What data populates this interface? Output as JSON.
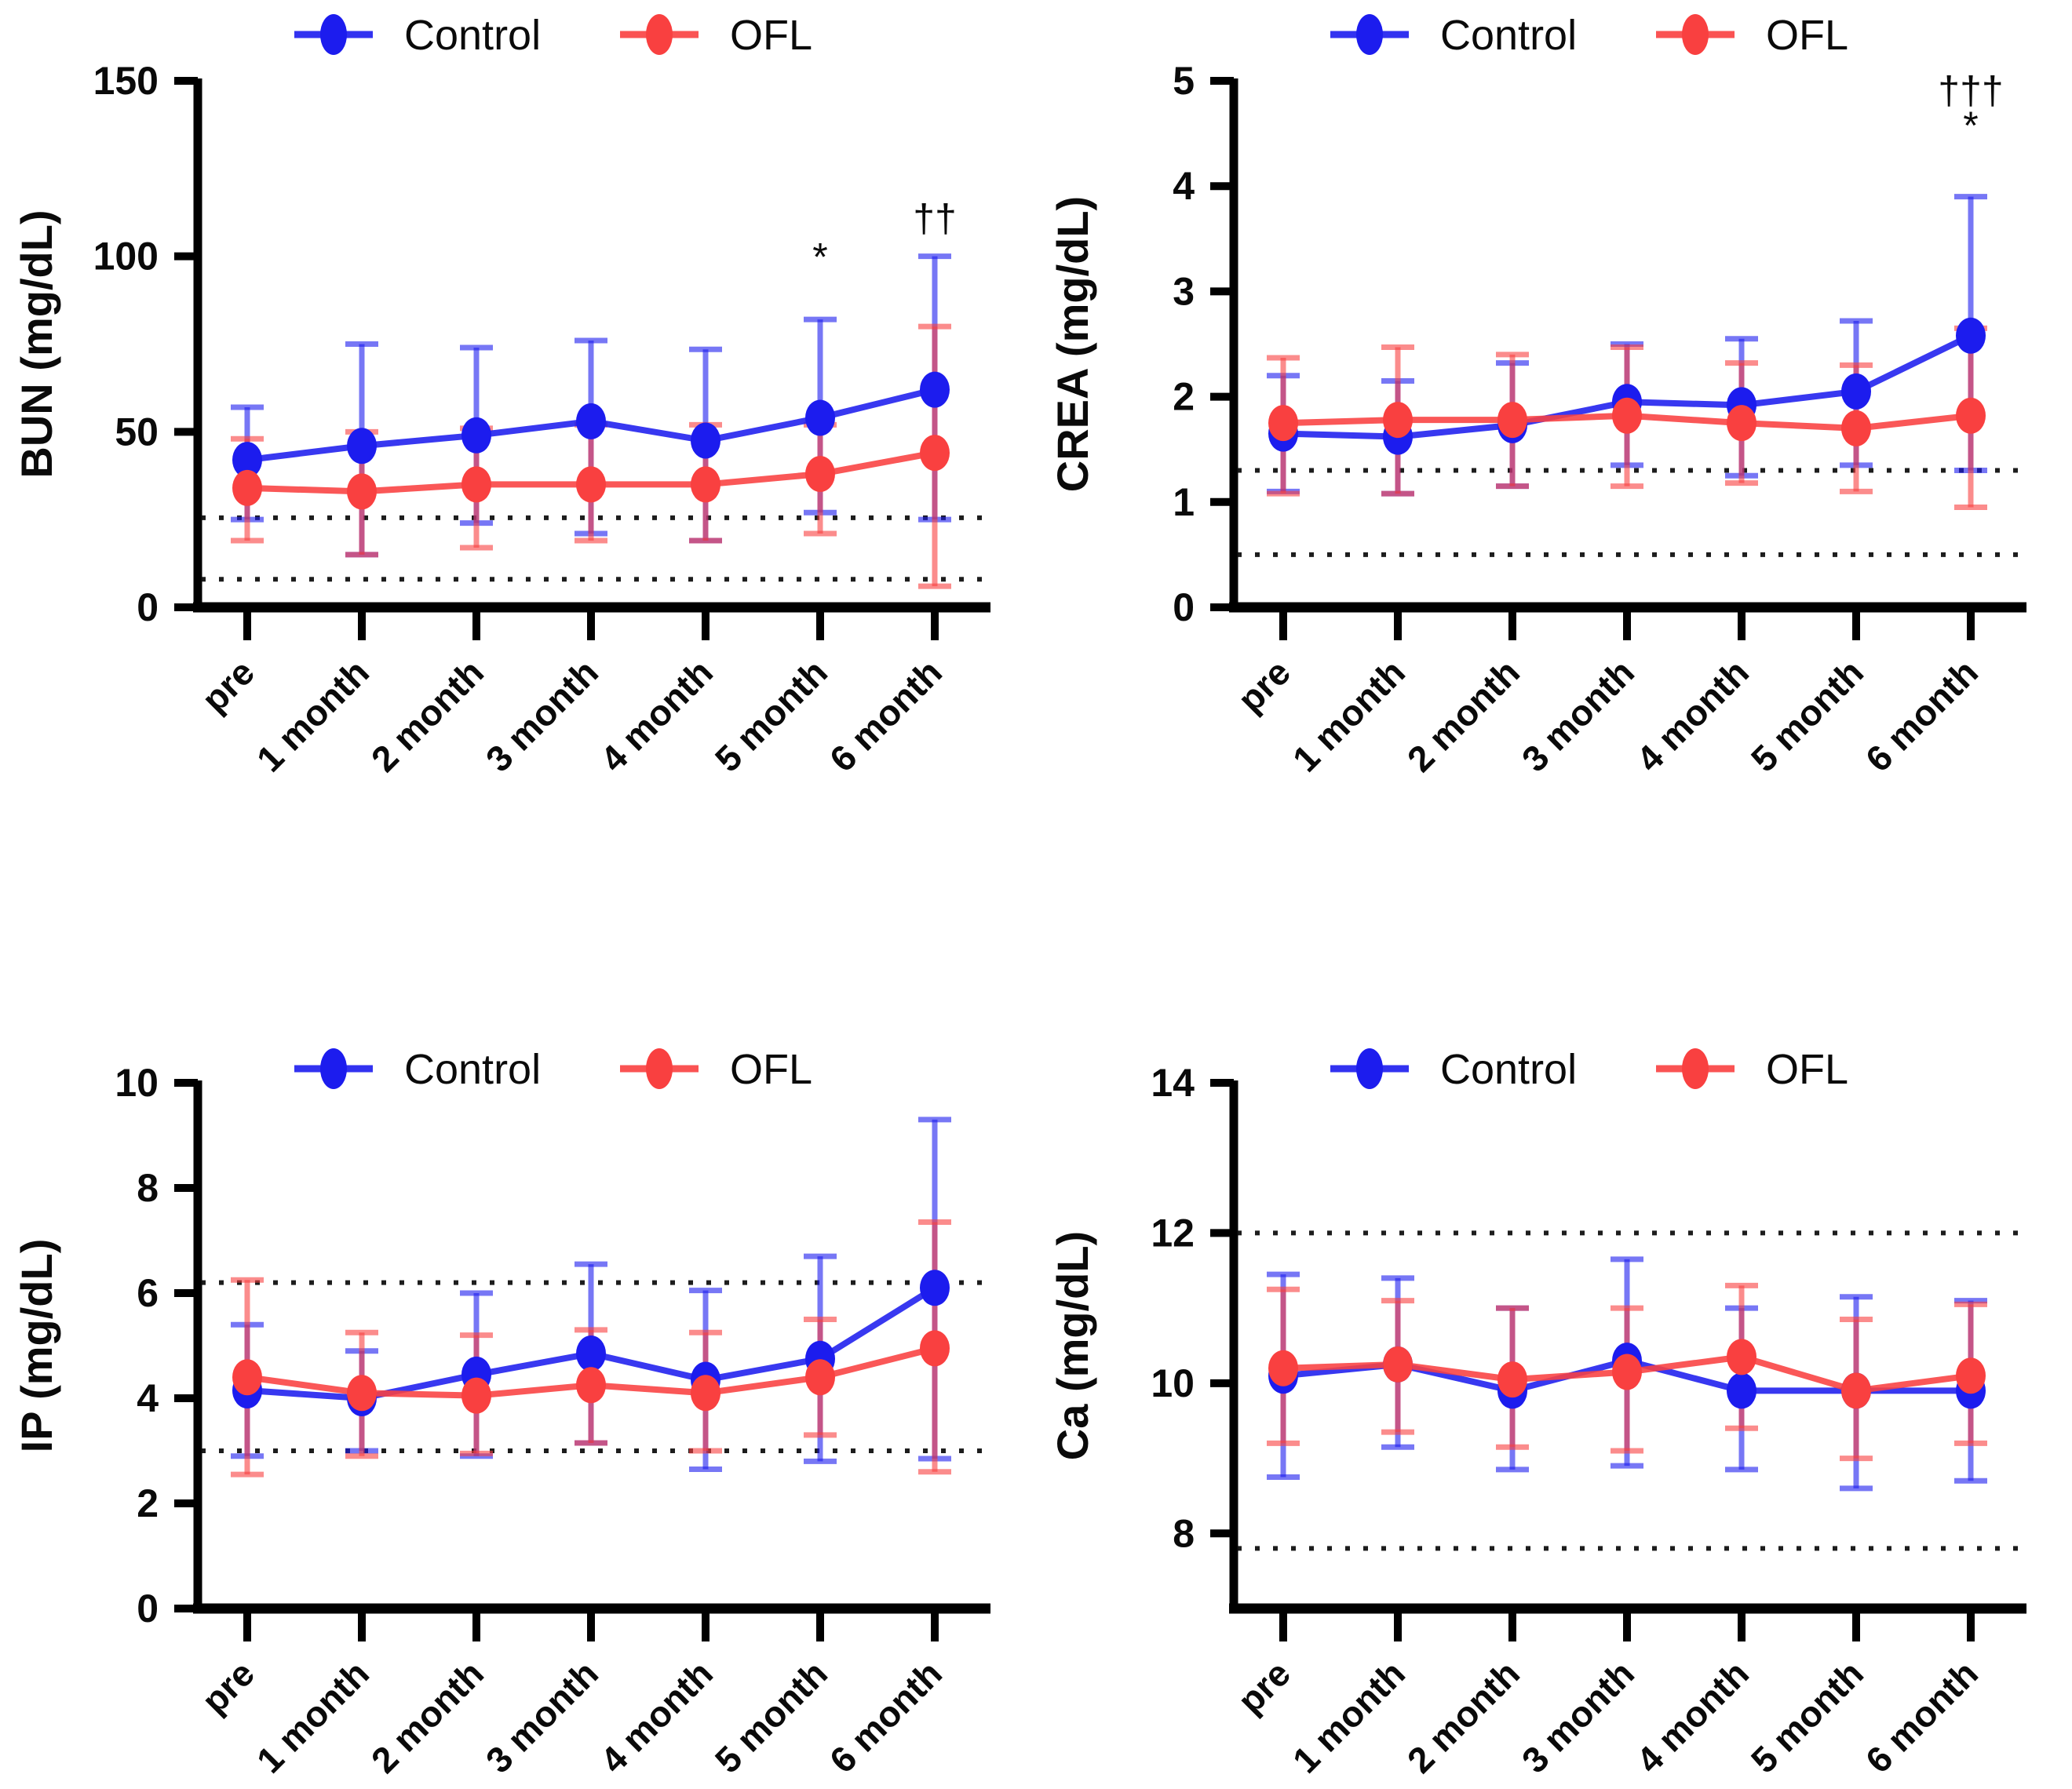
{
  "figure": {
    "background": "#ffffff",
    "text_color": "#0a0a0a",
    "axis_color": "#000000"
  },
  "colors": {
    "control_blue": "#1c1cee",
    "ofl_red": "#f94040"
  },
  "legend": {
    "items": [
      {
        "label": "Control",
        "color": "#1c1cee"
      },
      {
        "label": "OFL",
        "color": "#f94040"
      }
    ]
  },
  "categories": [
    "pre",
    "1 month",
    "2 month",
    "3 month",
    "4 month",
    "5 month",
    "6 month"
  ],
  "chart_data": [
    {
      "id": "bun",
      "type": "line",
      "title": "",
      "ylabel": "BUN  (mg/dL)",
      "xlabel": "",
      "ylim": [
        0,
        150
      ],
      "yticks": [
        0,
        50,
        100,
        150
      ],
      "grid": false,
      "legend_position": "top-center",
      "reference_lines": [
        25.5,
        8
      ],
      "categories": [
        "pre",
        "1 month",
        "2 month",
        "3 month",
        "4 month",
        "5 month",
        "6 month"
      ],
      "series": [
        {
          "name": "Control",
          "color": "#1c1cee",
          "mean": [
            42,
            46,
            49,
            53,
            47.5,
            54,
            62
          ],
          "upper": [
            57,
            75,
            74,
            76,
            73.5,
            82,
            100
          ],
          "lower": [
            25,
            15,
            24,
            21,
            19,
            27,
            25
          ]
        },
        {
          "name": "OFL",
          "color": "#f94040",
          "mean": [
            34,
            33,
            35,
            35,
            35,
            38,
            44
          ],
          "upper": [
            48,
            50,
            51,
            52,
            52,
            52,
            80
          ],
          "lower": [
            19,
            15,
            17,
            19,
            19,
            21,
            6
          ]
        }
      ],
      "annotations": [
        {
          "text": "*",
          "x_index": 5,
          "y_value": 96
        },
        {
          "text": "††",
          "x_index": 6,
          "y_value": 107
        }
      ]
    },
    {
      "id": "crea",
      "type": "line",
      "title": "",
      "ylabel": "CREA (mg/dL)",
      "xlabel": "",
      "ylim": [
        0,
        5
      ],
      "yticks": [
        0,
        1,
        2,
        3,
        4,
        5
      ],
      "grid": false,
      "legend_position": "top-center",
      "reference_lines": [
        1.3,
        0.5
      ],
      "categories": [
        "pre",
        "1 month",
        "2 month",
        "3 month",
        "4 month",
        "5 month",
        "6 month"
      ],
      "series": [
        {
          "name": "Control",
          "color": "#1c1cee",
          "mean": [
            1.65,
            1.62,
            1.73,
            1.95,
            1.92,
            2.05,
            2.58
          ],
          "upper": [
            2.2,
            2.15,
            2.32,
            2.5,
            2.55,
            2.72,
            3.9
          ],
          "lower": [
            1.1,
            1.08,
            1.15,
            1.35,
            1.25,
            1.35,
            1.3
          ]
        },
        {
          "name": "OFL",
          "color": "#f94040",
          "mean": [
            1.75,
            1.78,
            1.78,
            1.82,
            1.75,
            1.7,
            1.82
          ],
          "upper": [
            2.37,
            2.47,
            2.4,
            2.47,
            2.32,
            2.3,
            2.65
          ],
          "lower": [
            1.08,
            1.08,
            1.15,
            1.15,
            1.18,
            1.1,
            0.95
          ]
        }
      ],
      "annotations": [
        {
          "text": "†††",
          "x_index": 6,
          "y_value": 4.78
        },
        {
          "text": "*",
          "x_index": 6,
          "y_value": 4.45
        }
      ]
    },
    {
      "id": "ip",
      "type": "line",
      "title": "",
      "ylabel": "IP  (mg/dL)",
      "xlabel": "",
      "ylim": [
        0,
        10
      ],
      "yticks": [
        0,
        2,
        4,
        6,
        8,
        10
      ],
      "grid": false,
      "legend_position": "top-center",
      "reference_lines": [
        6.2,
        3
      ],
      "categories": [
        "pre",
        "1 month",
        "2 month",
        "3 month",
        "4 month",
        "5 month",
        "6 month"
      ],
      "series": [
        {
          "name": "Control",
          "color": "#1c1cee",
          "mean": [
            4.15,
            4,
            4.45,
            4.85,
            4.35,
            4.75,
            6.1
          ],
          "upper": [
            5.4,
            4.9,
            6,
            6.55,
            6.05,
            6.7,
            9.3
          ],
          "lower": [
            2.9,
            3,
            2.9,
            3.15,
            2.65,
            2.8,
            2.85
          ]
        },
        {
          "name": "OFL",
          "color": "#f94040",
          "mean": [
            4.4,
            4.1,
            4.05,
            4.25,
            4.1,
            4.4,
            4.95
          ],
          "upper": [
            6.25,
            5.25,
            5.2,
            5.3,
            5.25,
            5.5,
            7.35
          ],
          "lower": [
            2.55,
            2.9,
            2.95,
            3.15,
            3,
            3.3,
            2.6
          ]
        }
      ],
      "annotations": []
    },
    {
      "id": "ca",
      "type": "line",
      "title": "",
      "ylabel": "Ca  (mg/dL)",
      "xlabel": "",
      "ylim": [
        7,
        14
      ],
      "yticks": [
        8,
        10,
        12,
        14
      ],
      "grid": false,
      "legend_position": "top-center",
      "reference_lines": [
        12,
        7.8
      ],
      "categories": [
        "pre",
        "1 month",
        "2 month",
        "3 month",
        "4 month",
        "5 month",
        "6 month"
      ],
      "series": [
        {
          "name": "Control",
          "color": "#1c1cee",
          "mean": [
            10.1,
            10.25,
            9.9,
            10.3,
            9.9,
            9.9,
            9.9
          ],
          "upper": [
            11.45,
            11.4,
            11,
            11.65,
            11,
            11.15,
            11.1
          ],
          "lower": [
            8.75,
            9.15,
            8.85,
            8.9,
            8.85,
            8.6,
            8.7
          ]
        },
        {
          "name": "OFL",
          "color": "#f94040",
          "mean": [
            10.2,
            10.25,
            10.05,
            10.15,
            10.35,
            9.9,
            10.1
          ],
          "upper": [
            11.25,
            11.1,
            11,
            11,
            11.3,
            10.85,
            11.05
          ],
          "lower": [
            9.2,
            9.35,
            9.15,
            9.1,
            9.4,
            9,
            9.2
          ]
        }
      ],
      "annotations": []
    }
  ]
}
